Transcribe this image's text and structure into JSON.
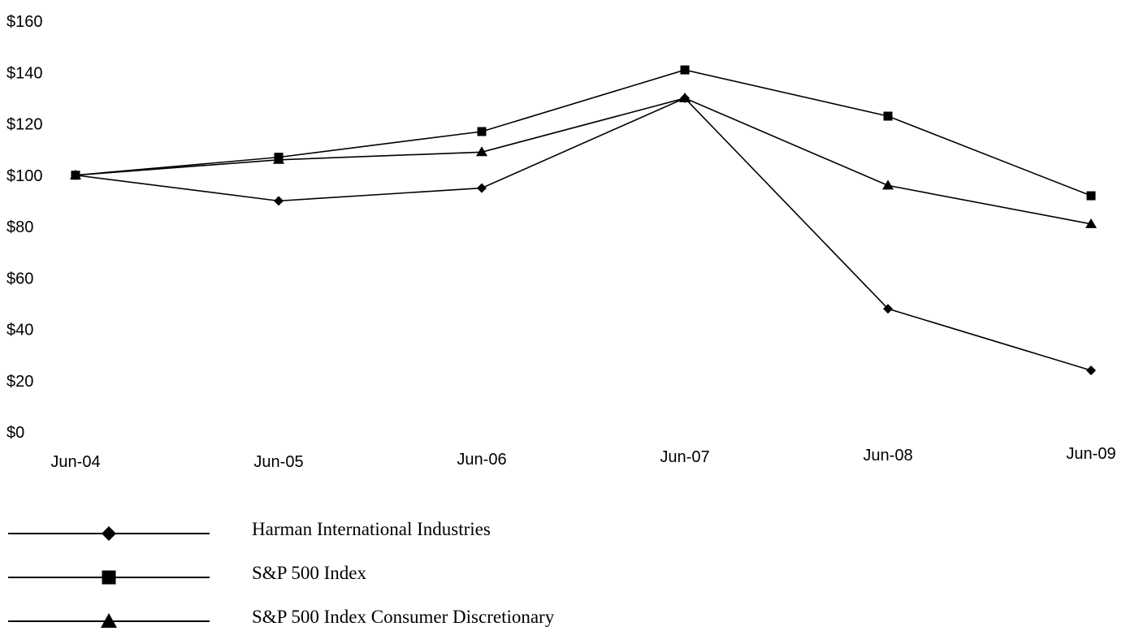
{
  "chart_data": {
    "type": "line",
    "title": "",
    "xlabel": "",
    "ylabel": "",
    "categories": [
      "Jun-04",
      "Jun-05",
      "Jun-06",
      "Jun-07",
      "Jun-08",
      "Jun-09"
    ],
    "ylim": [
      0,
      160
    ],
    "y_ticks": [
      0,
      20,
      40,
      60,
      80,
      100,
      120,
      140,
      160
    ],
    "y_tick_labels": [
      "$0",
      "$20",
      "$40",
      "$60",
      "$80",
      "$100",
      "$120",
      "$140",
      "$160"
    ],
    "grid": false,
    "legend_position": "bottom",
    "series": [
      {
        "name": "Harman International Industries",
        "marker": "diamond",
        "values": [
          100,
          90,
          95,
          130,
          48,
          24
        ]
      },
      {
        "name": "S&P 500 Index",
        "marker": "square",
        "values": [
          100,
          107,
          117,
          141,
          123,
          92
        ]
      },
      {
        "name": "S&P 500 Index Consumer Discretionary",
        "marker": "triangle",
        "values": [
          100,
          106,
          109,
          130,
          96,
          81
        ]
      }
    ],
    "colors": {
      "line": "#000000",
      "background": "#ffffff"
    }
  }
}
